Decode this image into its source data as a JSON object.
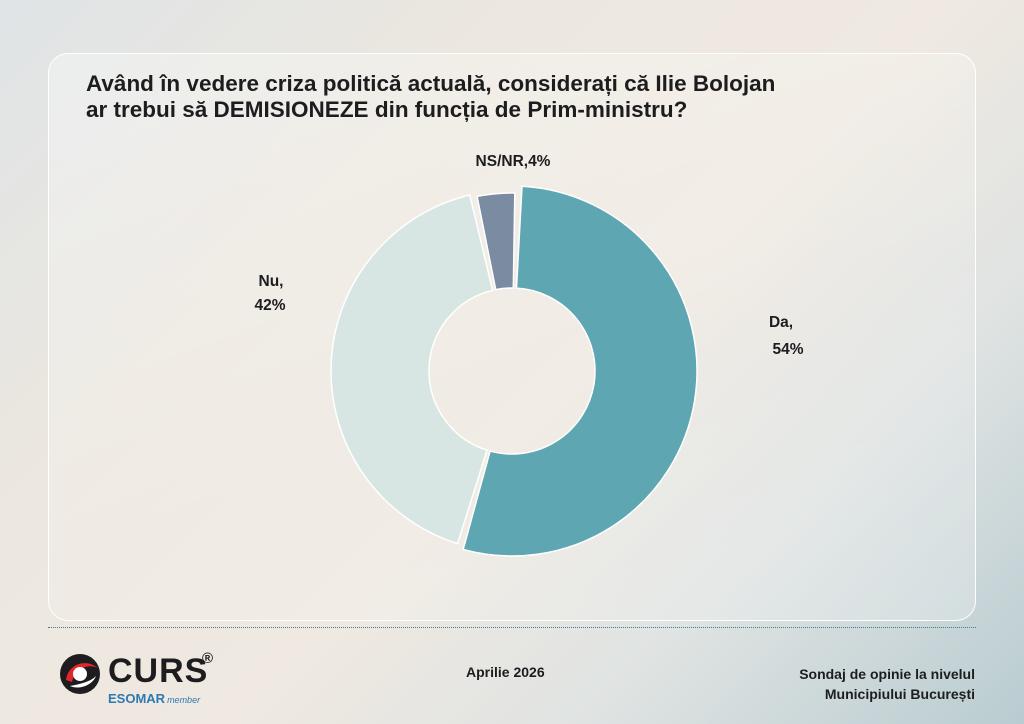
{
  "chart_data": {
    "type": "pie",
    "title_line1": "Având în vedere criza politică actuală, considerați că Ilie Bolojan",
    "title_line2": "ar trebui să DEMISIONEZE din funcția de Prim-ministru?",
    "slices": [
      {
        "name": "Da",
        "value": 54,
        "label_line1": "Da,",
        "label_line2": "54%",
        "color": "#5fa6b3"
      },
      {
        "name": "Nu",
        "value": 42,
        "label_line1": "Nu,",
        "label_line2": "42%",
        "color": "#d7e6e2"
      },
      {
        "name": "NS/NR",
        "value": 4,
        "label_line1": "NS/NR,4%",
        "label_line2": "",
        "color": "#7b8ba2"
      }
    ],
    "hole": "donut",
    "legend": "none"
  },
  "footer": {
    "logo_word": "CURS",
    "logo_reg": "®",
    "logo_esomar": "ESOMAR",
    "logo_member": "member",
    "date": "Aprilie 2026",
    "survey_line1": "Sondaj de opinie la nivelul",
    "survey_line2": "Municipiului București"
  },
  "colors": {
    "accent": "#3f7e8c",
    "logo_red": "#e3262a",
    "text": "#1d1d1f"
  }
}
